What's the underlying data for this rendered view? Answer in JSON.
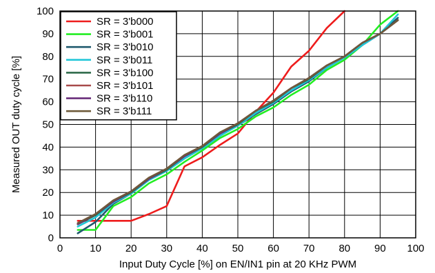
{
  "chart_data": {
    "type": "line",
    "title": "",
    "xlabel": "Input Duty Cycle [%] on EN/IN1 pin at 20 KHz PWM",
    "ylabel": "Measured OUT duty cycle [%]",
    "xlim": [
      0,
      100
    ],
    "ylim": [
      0,
      100
    ],
    "x_ticks": [
      "0",
      "10",
      "20",
      "30",
      "40",
      "50",
      "60",
      "70",
      "80",
      "90",
      "100"
    ],
    "y_ticks": [
      "0",
      "10",
      "20",
      "30",
      "40",
      "50",
      "60",
      "70",
      "80",
      "90",
      "100"
    ],
    "grid": true,
    "legend_position": "top-left",
    "series": [
      {
        "name": "SR = 3'b000",
        "color": "#ee1c1c",
        "points": [
          [
            5,
            7.5
          ],
          [
            10,
            7.5
          ],
          [
            15,
            7.5
          ],
          [
            20,
            7.5
          ],
          [
            25,
            10.5
          ],
          [
            30,
            14
          ],
          [
            35,
            31.5
          ],
          [
            40,
            35.5
          ],
          [
            45,
            41
          ],
          [
            50,
            46
          ],
          [
            55,
            55.5
          ],
          [
            60,
            64
          ],
          [
            65,
            75.5
          ],
          [
            70,
            82.5
          ],
          [
            75,
            92.5
          ],
          [
            80,
            100
          ]
        ]
      },
      {
        "name": "SR = 3'b001",
        "color": "#22ee22",
        "points": [
          [
            5,
            3.5
          ],
          [
            10,
            3.5
          ],
          [
            15,
            14
          ],
          [
            20,
            18
          ],
          [
            25,
            24
          ],
          [
            30,
            28
          ],
          [
            35,
            33.5
          ],
          [
            40,
            38.5
          ],
          [
            45,
            44
          ],
          [
            50,
            48
          ],
          [
            55,
            53.5
          ],
          [
            60,
            57.5
          ],
          [
            65,
            63
          ],
          [
            70,
            67.5
          ],
          [
            75,
            74
          ],
          [
            80,
            78.5
          ],
          [
            85,
            85
          ],
          [
            90,
            94
          ],
          [
            95,
            100
          ]
        ]
      },
      {
        "name": "SR = 3'b010",
        "color": "#1f5a6e",
        "points": [
          [
            5,
            2
          ],
          [
            10,
            7
          ],
          [
            15,
            15
          ],
          [
            20,
            19.5
          ],
          [
            25,
            25.5
          ],
          [
            30,
            29.5
          ],
          [
            35,
            35
          ],
          [
            40,
            39.5
          ],
          [
            45,
            45
          ],
          [
            50,
            49.5
          ],
          [
            55,
            54.5
          ],
          [
            60,
            59
          ],
          [
            65,
            64.5
          ],
          [
            70,
            69
          ],
          [
            75,
            75
          ],
          [
            80,
            79.5
          ],
          [
            85,
            85
          ],
          [
            90,
            90
          ],
          [
            95,
            97
          ]
        ]
      },
      {
        "name": "SR = 3'b011",
        "color": "#1fc6d8",
        "points": [
          [
            5,
            5
          ],
          [
            10,
            9
          ],
          [
            15,
            15.5
          ],
          [
            20,
            19.5
          ],
          [
            25,
            25.5
          ],
          [
            30,
            29.5
          ],
          [
            35,
            35
          ],
          [
            40,
            39.5
          ],
          [
            45,
            45
          ],
          [
            50,
            49.5
          ],
          [
            55,
            55
          ],
          [
            60,
            59.5
          ],
          [
            65,
            65
          ],
          [
            70,
            69.5
          ],
          [
            75,
            75
          ],
          [
            80,
            79.5
          ],
          [
            85,
            85
          ],
          [
            90,
            90
          ],
          [
            95,
            98.5
          ]
        ]
      },
      {
        "name": "SR = 3'b100",
        "color": "#2e6a4a",
        "points": [
          [
            5,
            6
          ],
          [
            10,
            10
          ],
          [
            15,
            16
          ],
          [
            20,
            20
          ],
          [
            25,
            26
          ],
          [
            30,
            30
          ],
          [
            35,
            36
          ],
          [
            40,
            40
          ],
          [
            45,
            46
          ],
          [
            50,
            50
          ],
          [
            55,
            56
          ],
          [
            60,
            60
          ],
          [
            65,
            66
          ],
          [
            70,
            70
          ],
          [
            75,
            76
          ],
          [
            80,
            80
          ],
          [
            85,
            86
          ],
          [
            90,
            90
          ],
          [
            95,
            96
          ]
        ]
      },
      {
        "name": "SR = 3'b101",
        "color": "#a84a4a",
        "points": [
          [
            5,
            6.5
          ],
          [
            10,
            10.5
          ],
          [
            15,
            16.5
          ],
          [
            20,
            20.5
          ],
          [
            25,
            26.5
          ],
          [
            30,
            30.5
          ],
          [
            35,
            36.5
          ],
          [
            40,
            40.5
          ],
          [
            45,
            46.5
          ],
          [
            50,
            50.5
          ],
          [
            55,
            56
          ],
          [
            60,
            60.5
          ],
          [
            65,
            66
          ],
          [
            70,
            70.5
          ],
          [
            75,
            76
          ],
          [
            80,
            80
          ],
          [
            85,
            86
          ],
          [
            90,
            90
          ],
          [
            95,
            96
          ]
        ]
      },
      {
        "name": "SR = 3'b110",
        "color": "#6a2e7a",
        "points": [
          [
            5,
            6
          ],
          [
            10,
            10.5
          ],
          [
            15,
            16
          ],
          [
            20,
            20.5
          ],
          [
            25,
            26
          ],
          [
            30,
            30.5
          ],
          [
            35,
            36
          ],
          [
            40,
            40.5
          ],
          [
            45,
            46
          ],
          [
            50,
            50.5
          ],
          [
            55,
            56
          ],
          [
            60,
            60.5
          ],
          [
            65,
            66
          ],
          [
            70,
            70.5
          ],
          [
            75,
            76
          ],
          [
            80,
            80
          ],
          [
            85,
            86
          ],
          [
            90,
            90
          ],
          [
            95,
            96
          ]
        ]
      },
      {
        "name": "SR = 3'b111",
        "color": "#6e5a3a",
        "points": [
          [
            5,
            6.5
          ],
          [
            10,
            10.5
          ],
          [
            15,
            16.5
          ],
          [
            20,
            20.5
          ],
          [
            25,
            26.5
          ],
          [
            30,
            30.5
          ],
          [
            35,
            36.5
          ],
          [
            40,
            40.5
          ],
          [
            45,
            46.5
          ],
          [
            50,
            50.5
          ],
          [
            55,
            56
          ],
          [
            60,
            60.5
          ],
          [
            65,
            66
          ],
          [
            70,
            70.5
          ],
          [
            75,
            76
          ],
          [
            80,
            80
          ],
          [
            85,
            86
          ],
          [
            90,
            90
          ],
          [
            95,
            96
          ]
        ]
      }
    ]
  }
}
